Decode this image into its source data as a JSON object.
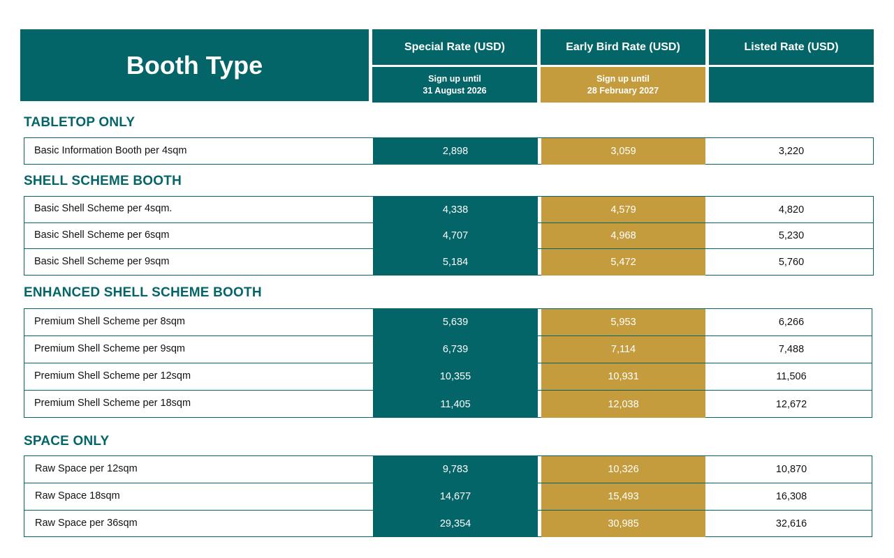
{
  "header": {
    "booth_type": "Booth Type",
    "special_rate": "Special Rate (USD)",
    "early_bird_rate": "Early Bird Rate (USD)",
    "listed_rate": "Listed Rate (USD)",
    "special_sub_1": "Sign up until",
    "special_sub_2": "31 August 2026",
    "early_sub_1": "Sign up until",
    "early_sub_2": "28 February 2027"
  },
  "colors": {
    "teal": "#046569",
    "gold": "#c49c3e"
  },
  "sections": [
    {
      "title": "TABLETOP ONLY",
      "rows": [
        {
          "name": "Basic Information Booth per 4sqm",
          "special": "2,898",
          "early": "3,059",
          "listed": "3,220"
        }
      ]
    },
    {
      "title": "SHELL SCHEME BOOTH",
      "rows": [
        {
          "name": "Basic Shell Scheme per 4sqm.",
          "special": "4,338",
          "early": "4,579",
          "listed": "4,820"
        },
        {
          "name": "Basic Shell Scheme per 6sqm",
          "special": "4,707",
          "early": "4,968",
          "listed": "5,230"
        },
        {
          "name": "Basic Shell Scheme per 9sqm",
          "special": "5,184",
          "early": "5,472",
          "listed": "5,760"
        }
      ]
    },
    {
      "title": "ENHANCED SHELL SCHEME BOOTH",
      "rows": [
        {
          "name": "Premium Shell Scheme per 8sqm",
          "special": "5,639",
          "early": "5,953",
          "listed": "6,266"
        },
        {
          "name": "Premium Shell Scheme per 9sqm",
          "special": "6,739",
          "early": "7,114",
          "listed": "7,488"
        },
        {
          "name": "Premium Shell Scheme per 12sqm",
          "special": "10,355",
          "early": "10,931",
          "listed": "11,506"
        },
        {
          "name": "Premium Shell Scheme per 18sqm",
          "special": "11,405",
          "early": "12,038",
          "listed": "12,672"
        }
      ]
    },
    {
      "title": "SPACE ONLY",
      "rows": [
        {
          "name": "Raw Space per 12sqm",
          "special": "9,783",
          "early": "10,326",
          "listed": "10,870"
        },
        {
          "name": "Raw Space 18sqm",
          "special": "14,677",
          "early": "15,493",
          "listed": "16,308"
        },
        {
          "name": "Raw Space per 36sqm",
          "special": "29,354",
          "early": "30,985",
          "listed": "32,616"
        }
      ]
    }
  ]
}
